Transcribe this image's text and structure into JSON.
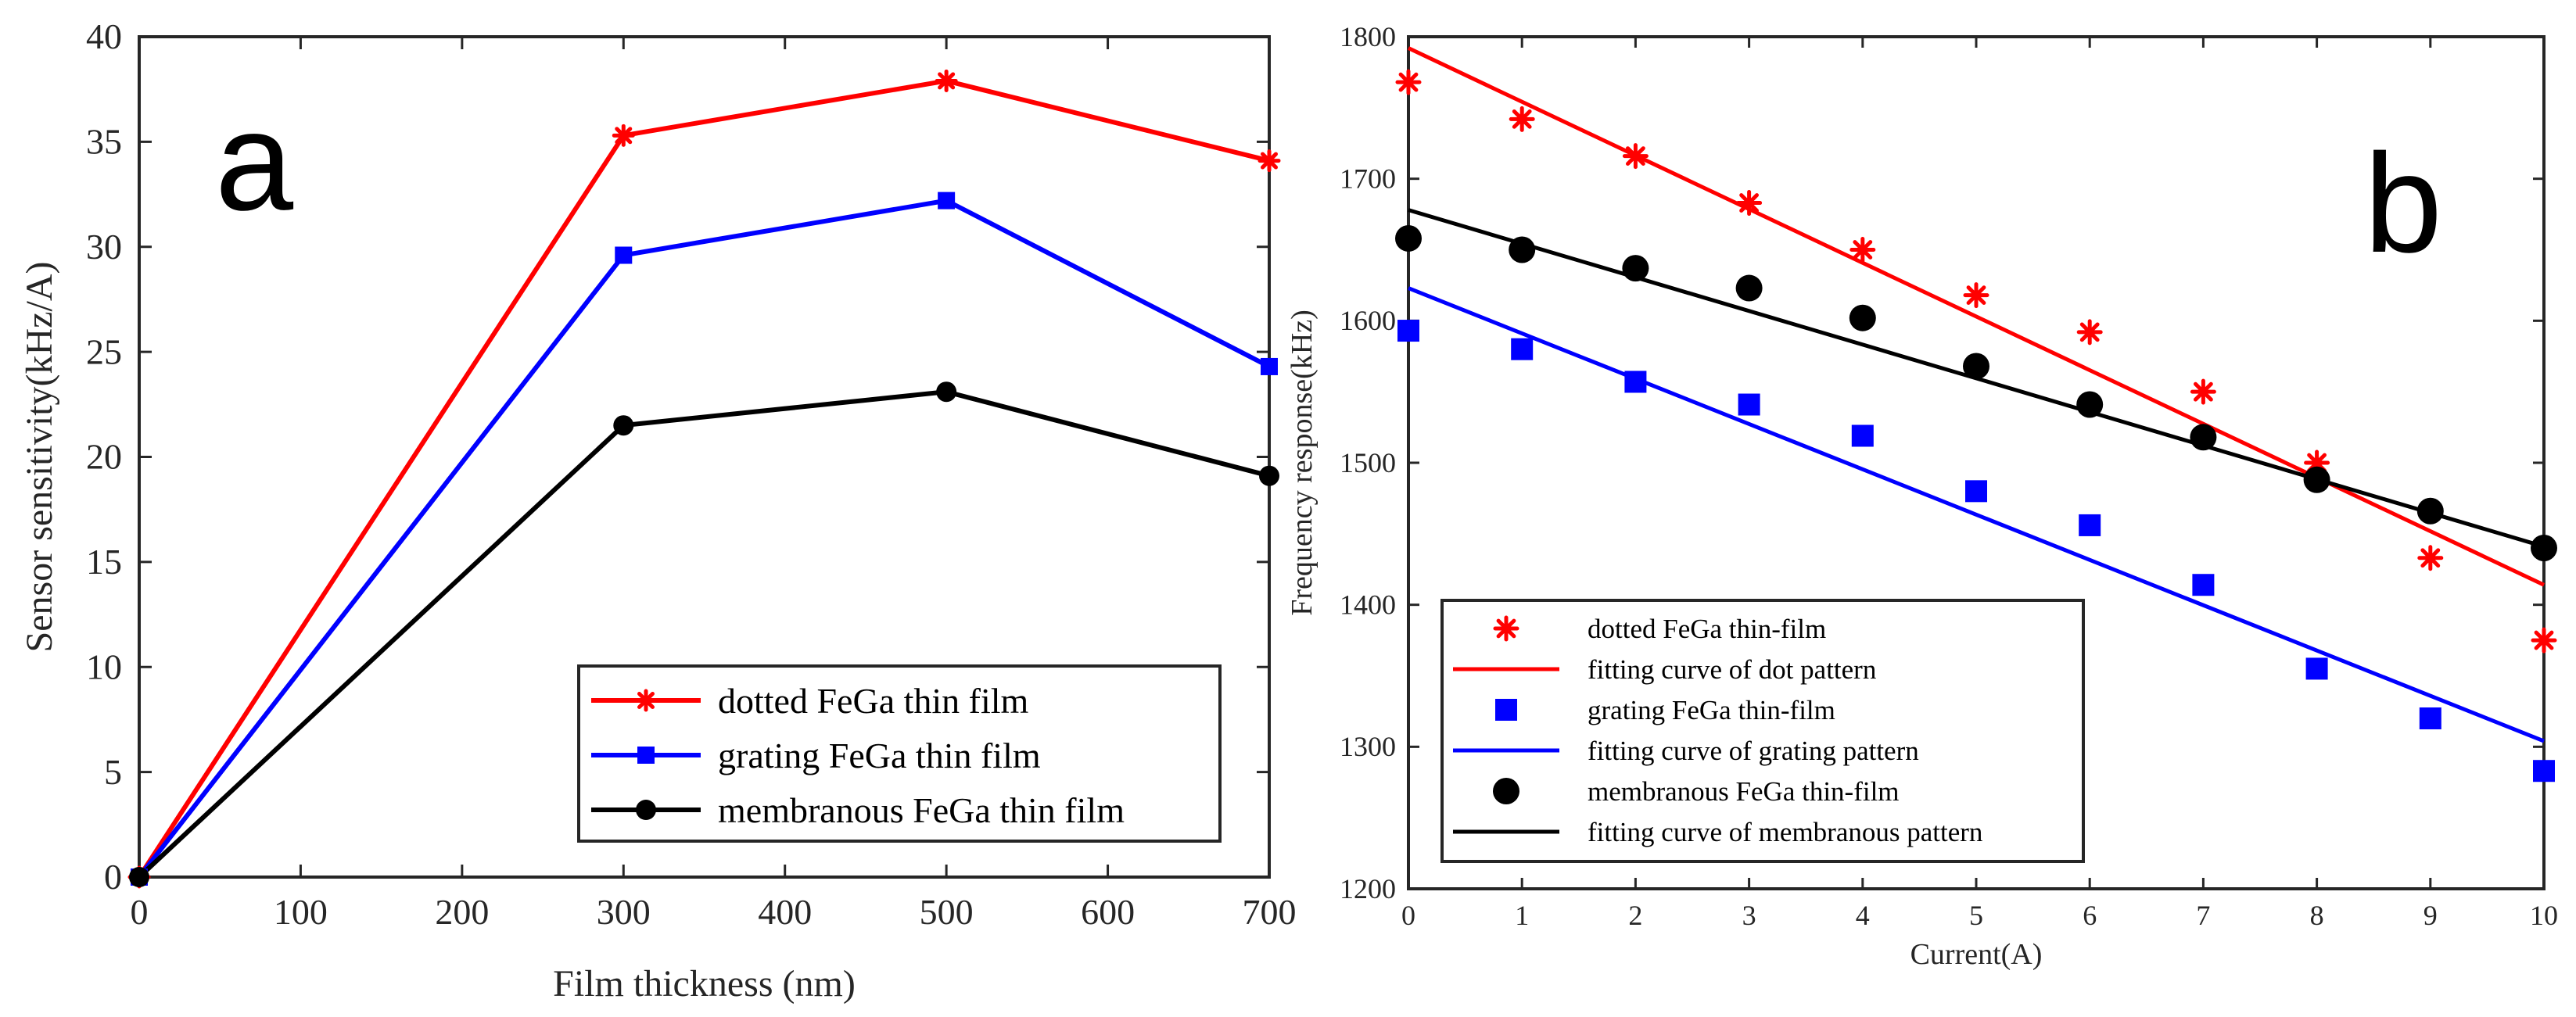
{
  "chart_data": [
    {
      "type": "line",
      "panel_label": "a",
      "title": "",
      "xlabel": "Film thickness (nm)",
      "ylabel": "Sensor sensitivity(kHz/A)",
      "xlim": [
        0,
        700
      ],
      "ylim": [
        0,
        40
      ],
      "xticks": [
        0,
        100,
        200,
        300,
        400,
        500,
        600,
        700
      ],
      "yticks": [
        0,
        5,
        10,
        15,
        20,
        25,
        30,
        35,
        40
      ],
      "grid": false,
      "legend_position": "bottom-right",
      "x": [
        0,
        300,
        500,
        700
      ],
      "series": [
        {
          "name": "dotted FeGa thin film",
          "color": "#ff0000",
          "marker": "asterisk",
          "values": [
            0,
            35.3,
            37.9,
            34.1
          ]
        },
        {
          "name": "grating FeGa thin film",
          "color": "#0000ff",
          "marker": "square",
          "values": [
            0,
            29.6,
            32.2,
            24.3
          ]
        },
        {
          "name": "membranous FeGa thin film",
          "color": "#000000",
          "marker": "circle",
          "values": [
            0,
            21.5,
            23.1,
            19.1
          ]
        }
      ]
    },
    {
      "type": "scatter",
      "panel_label": "b",
      "title": "",
      "xlabel": "Current(A)",
      "ylabel": "Frequency response(kHz)",
      "xlim": [
        0,
        10
      ],
      "ylim": [
        1200,
        1800
      ],
      "xticks": [
        0,
        1,
        2,
        3,
        4,
        5,
        6,
        7,
        8,
        9,
        10
      ],
      "yticks": [
        1200,
        1300,
        1400,
        1500,
        1600,
        1700,
        1800
      ],
      "grid": false,
      "legend_position": "bottom-left",
      "x": [
        0,
        1,
        2,
        3,
        4,
        5,
        6,
        7,
        8,
        9,
        10
      ],
      "series": [
        {
          "name": "dotted FeGa thin-film",
          "kind": "points",
          "color": "#ff0000",
          "marker": "asterisk",
          "values": [
            1768,
            1742,
            1716,
            1683,
            1650,
            1618,
            1592,
            1550,
            1500,
            1433,
            1375
          ]
        },
        {
          "name": "fitting curve of dot pattern",
          "kind": "fit",
          "color": "#ff0000",
          "x": [
            0,
            10
          ],
          "values": [
            1792,
            1414
          ]
        },
        {
          "name": "grating FeGa thin-film",
          "kind": "points",
          "color": "#0000ff",
          "marker": "square",
          "values": [
            1593,
            1580,
            1557,
            1541,
            1519,
            1480,
            1456,
            1414,
            1355,
            1320,
            1283
          ]
        },
        {
          "name": "fitting curve of grating pattern",
          "kind": "fit",
          "color": "#0000ff",
          "x": [
            0,
            10
          ],
          "values": [
            1623,
            1304
          ]
        },
        {
          "name": "membranous FeGa thin-film",
          "kind": "points",
          "color": "#000000",
          "marker": "circle",
          "values": [
            1658,
            1650,
            1637,
            1623,
            1602,
            1568,
            1541,
            1518,
            1488,
            1466,
            1440
          ]
        },
        {
          "name": "fitting curve of membranous pattern",
          "kind": "fit",
          "color": "#000000",
          "x": [
            0,
            10
          ],
          "values": [
            1678,
            1441
          ]
        }
      ]
    }
  ]
}
